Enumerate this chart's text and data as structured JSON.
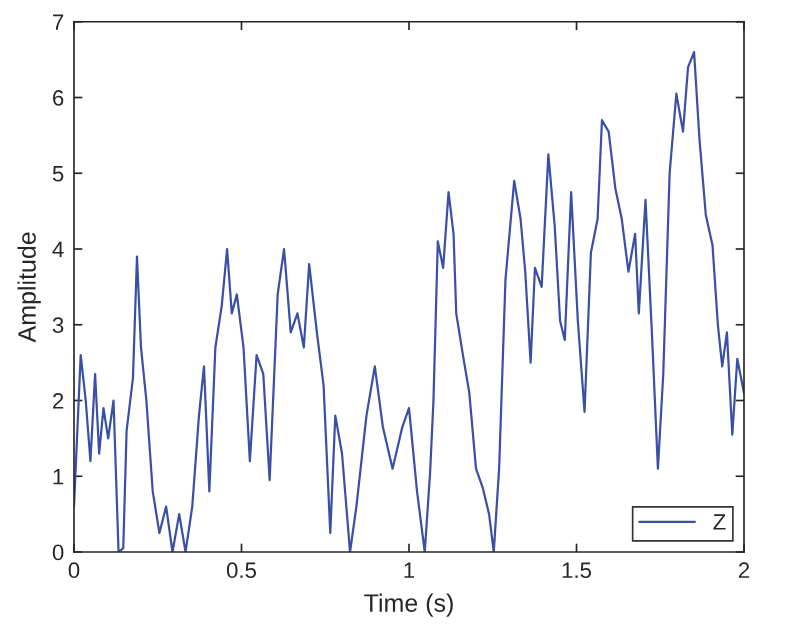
{
  "chart_data": {
    "type": "line",
    "xlabel": "Time (s)",
    "ylabel": "Amplitude",
    "xlim": [
      0,
      2
    ],
    "xticks": [
      0,
      0.5,
      1,
      1.5,
      2
    ],
    "ylim": [
      0,
      7
    ],
    "yticks": [
      0,
      1,
      2,
      3,
      4,
      5,
      6,
      7
    ],
    "grid": false,
    "legend": "bottom right",
    "series": [
      {
        "name": "Z",
        "color": "#3a4fa6",
        "x": [
          0,
          0.02,
          0.035,
          0.049,
          0.063,
          0.075,
          0.088,
          0.102,
          0.118,
          0.133,
          0.147,
          0.157,
          0.176,
          0.188,
          0.2,
          0.216,
          0.235,
          0.255,
          0.275,
          0.294,
          0.314,
          0.333,
          0.353,
          0.373,
          0.388,
          0.404,
          0.422,
          0.441,
          0.457,
          0.471,
          0.486,
          0.506,
          0.525,
          0.545,
          0.565,
          0.584,
          0.608,
          0.627,
          0.647,
          0.667,
          0.686,
          0.702,
          0.725,
          0.745,
          0.765,
          0.78,
          0.8,
          0.824,
          0.843,
          0.873,
          0.898,
          0.922,
          0.951,
          0.98,
          1.0,
          1.024,
          1.047,
          1.063,
          1.073,
          1.086,
          1.102,
          1.118,
          1.133,
          1.141,
          1.161,
          1.18,
          1.2,
          1.22,
          1.239,
          1.253,
          1.269,
          1.288,
          1.314,
          1.333,
          1.347,
          1.363,
          1.376,
          1.396,
          1.416,
          1.435,
          1.451,
          1.465,
          1.484,
          1.504,
          1.524,
          1.543,
          1.563,
          1.576,
          1.596,
          1.616,
          1.635,
          1.655,
          1.675,
          1.686,
          1.706,
          1.725,
          1.743,
          1.759,
          1.778,
          1.798,
          1.818,
          1.833,
          1.851,
          1.867,
          1.886,
          1.906,
          1.922,
          1.935,
          1.949,
          1.965,
          1.98,
          2.0
        ],
        "values": [
          0.6,
          2.6,
          2.0,
          1.2,
          2.35,
          1.3,
          1.9,
          1.5,
          2.0,
          0,
          0.05,
          1.6,
          2.3,
          3.9,
          2.7,
          2.0,
          0.8,
          0.25,
          0.6,
          0,
          0.5,
          0,
          0.6,
          1.8,
          2.45,
          0.8,
          2.7,
          3.25,
          4.0,
          3.15,
          3.4,
          2.7,
          1.2,
          2.6,
          2.35,
          0.95,
          3.4,
          4.0,
          2.9,
          3.15,
          2.7,
          3.8,
          2.9,
          2.2,
          0.25,
          1.8,
          1.3,
          0,
          0.6,
          1.8,
          2.45,
          1.65,
          1.1,
          1.65,
          1.9,
          0.8,
          0,
          1.05,
          2.0,
          4.1,
          3.75,
          4.75,
          4.2,
          3.15,
          2.6,
          2.1,
          1.1,
          0.85,
          0.5,
          0,
          1.1,
          3.6,
          4.9,
          4.4,
          3.7,
          2.5,
          3.75,
          3.5,
          5.25,
          4.3,
          3.05,
          2.8,
          4.75,
          3.05,
          1.85,
          3.95,
          4.4,
          5.7,
          5.55,
          4.8,
          4.4,
          3.7,
          4.2,
          3.15,
          4.65,
          2.9,
          1.1,
          2.35,
          5.0,
          6.05,
          5.55,
          6.4,
          6.6,
          5.45,
          4.45,
          4.05,
          3.0,
          2.45,
          2.9,
          1.55,
          2.55,
          2.1
        ]
      }
    ]
  }
}
